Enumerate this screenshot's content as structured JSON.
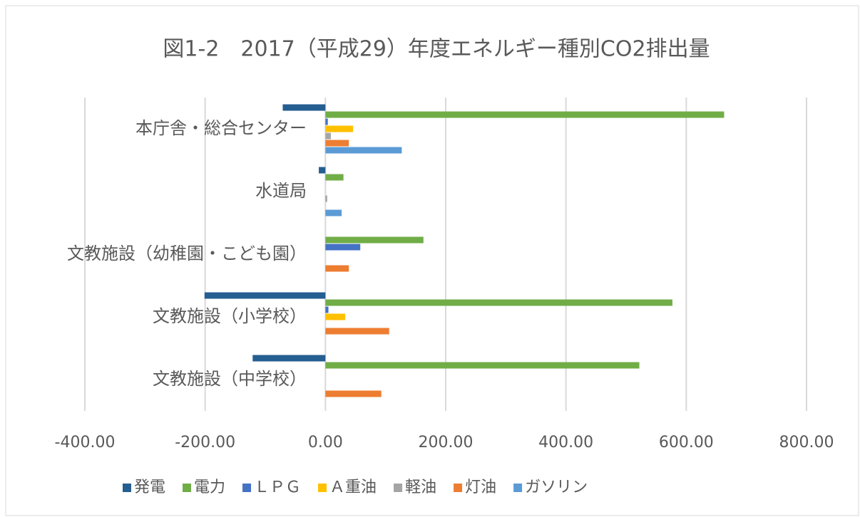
{
  "chart_data": {
    "type": "hbar",
    "title": "図1-2　2017（平成29）年度エネルギー種別CO2排出量",
    "categories": [
      "本庁舎・総合センター",
      "水道局",
      "文教施設（幼稚園・こども園）",
      "文教施設（小学校）",
      "文教施設（中学校）"
    ],
    "series": [
      {
        "name": "発電",
        "color": "#255e91",
        "values": [
          -71,
          -11,
          0,
          -201,
          -121
        ]
      },
      {
        "name": "電力",
        "color": "#70ad47",
        "values": [
          663,
          30,
          163,
          577,
          522
        ]
      },
      {
        "name": "ＬＰＧ",
        "color": "#4472c4",
        "values": [
          4,
          0,
          58,
          5,
          0
        ]
      },
      {
        "name": "Ａ重油",
        "color": "#ffc000",
        "values": [
          46,
          0,
          0,
          33,
          0
        ]
      },
      {
        "name": "軽油",
        "color": "#a5a5a5",
        "values": [
          9,
          3,
          0,
          0,
          0
        ]
      },
      {
        "name": "灯油",
        "color": "#ed7d31",
        "values": [
          39,
          0,
          39,
          106,
          93
        ]
      },
      {
        "name": "ガソリン",
        "color": "#5b9bd5",
        "values": [
          127,
          27,
          0,
          0,
          0
        ]
      }
    ],
    "xlim": [
      -400,
      800
    ],
    "xticks": [
      {
        "value": -400,
        "label": "-400.00"
      },
      {
        "value": -200,
        "label": "-200.00"
      },
      {
        "value": 0,
        "label": "0.00"
      },
      {
        "value": 200,
        "label": "200.00"
      },
      {
        "value": 400,
        "label": "400.00"
      },
      {
        "value": 600,
        "label": "600.00"
      },
      {
        "value": 800,
        "label": "800.00"
      }
    ],
    "grid": true,
    "legend": "bottom"
  }
}
